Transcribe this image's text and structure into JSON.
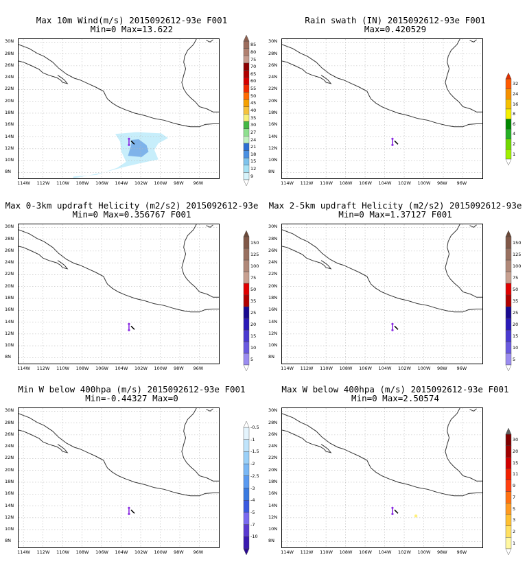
{
  "panels": [
    {
      "title_line1": "Max 10m Wind(m/s) 2015092612-93e F001",
      "title_line2": "Min=0 Max=13.622",
      "colorbar": {
        "labels": [
          "9",
          "12",
          "15",
          "18",
          "21",
          "24",
          "27",
          "30",
          "35",
          "40",
          "45",
          "50",
          "55",
          "60",
          "65",
          "70",
          "75",
          "80",
          "85"
        ],
        "colors": [
          "#d6f3fb",
          "#a6e2f5",
          "#7ec3ec",
          "#4a90e2",
          "#2d6fd3",
          "#bff0bf",
          "#8ee08e",
          "#43b843",
          "#f7f07a",
          "#f5c23b",
          "#f5a000",
          "#ff6b00",
          "#ef2a00",
          "#d60000",
          "#b00000",
          "#8c0000",
          "#c79c8f",
          "#b08070",
          "#9c6c5c"
        ],
        "top_color": "#8c6050"
      },
      "shading": "wind"
    },
    {
      "title_line1": "Rain swath (IN) 2015092612-93e F001",
      "title_line2": "Max=0.420529",
      "colorbar": {
        "labels": [
          "1",
          "2",
          "4",
          "6",
          "8",
          "16",
          "24",
          "32"
        ],
        "colors": [
          "#a0f000",
          "#70d800",
          "#24b024",
          "#008800",
          "#f5f000",
          "#f5c000",
          "#f59000",
          "#ff5a00"
        ],
        "top_color": "#e03000"
      },
      "shading": "none"
    },
    {
      "title_line1": "Max 0-3km updraft Helicity (m2/s2) 2015092612-93e",
      "title_line2": "Min=0 Max=0.356767 F001",
      "colorbar": {
        "labels": [
          "5",
          "10",
          "15",
          "20",
          "25",
          "35",
          "50",
          "75",
          "100",
          "125",
          "150"
        ],
        "colors": [
          "#9b8cf0",
          "#6a5ae0",
          "#4a3ad0",
          "#2a1ab8",
          "#1a0a90",
          "#b00000",
          "#e00000",
          "#c8a090",
          "#b08878",
          "#987060",
          "#805848"
        ],
        "top_color": "#6a4838"
      },
      "shading": "none"
    },
    {
      "title_line1": "Max 2-5km updraft Helicity (m2/s2) 2015092612-93e",
      "title_line2": "Min=0 Max=1.37127 F001",
      "colorbar": {
        "labels": [
          "5",
          "10",
          "15",
          "20",
          "25",
          "35",
          "50",
          "75",
          "100",
          "125",
          "150"
        ],
        "colors": [
          "#9b8cf0",
          "#6a5ae0",
          "#4a3ad0",
          "#2a1ab8",
          "#1a0a90",
          "#b00000",
          "#e00000",
          "#c8a090",
          "#b08878",
          "#987060",
          "#805848"
        ],
        "top_color": "#6a4838"
      },
      "shading": "none"
    },
    {
      "title_line1": "Min W below 400hpa (m/s) 2015092612-93e F001",
      "title_line2": "Min=-0.44327 Max=0",
      "colorbar": {
        "labels": [
          "-10",
          "-7",
          "-5",
          "-4",
          "-3",
          "-2.5",
          "-2",
          "-1.5",
          "-1",
          "-0.5"
        ],
        "colors": [
          "#3a1ab0",
          "#5a3ad0",
          "#7a6af0",
          "#3a5ae0",
          "#3a7ae0",
          "#5a9af0",
          "#7ab8f5",
          "#9ad0f8",
          "#c0e4fb",
          "#e4f4fd"
        ],
        "bottom_color": "#2a0a90"
      },
      "shading": "none"
    },
    {
      "title_line1": "Max W below 400hpa (m/s) 2015092612-93e F001",
      "title_line2": "Min=0 Max=2.50574",
      "colorbar": {
        "labels": [
          "1",
          "2",
          "3",
          "5",
          "7",
          "9",
          "11",
          "15",
          "20",
          "30"
        ],
        "colors": [
          "#fff7a0",
          "#ffe060",
          "#ffc030",
          "#ff9a20",
          "#ff7010",
          "#ff4010",
          "#f02000",
          "#d00000",
          "#a00000",
          "#800000"
        ],
        "top_color": "#606060"
      },
      "shading": "maxw"
    }
  ],
  "lat_labels": [
    "30N",
    "28N",
    "26N",
    "24N",
    "22N",
    "20N",
    "18N",
    "16N",
    "14N",
    "12N",
    "10N",
    "8N"
  ],
  "lon_labels": [
    "114W",
    "112W",
    "110W",
    "108W",
    "106W",
    "104W",
    "102W",
    "100W",
    "98W",
    "96W"
  ]
}
